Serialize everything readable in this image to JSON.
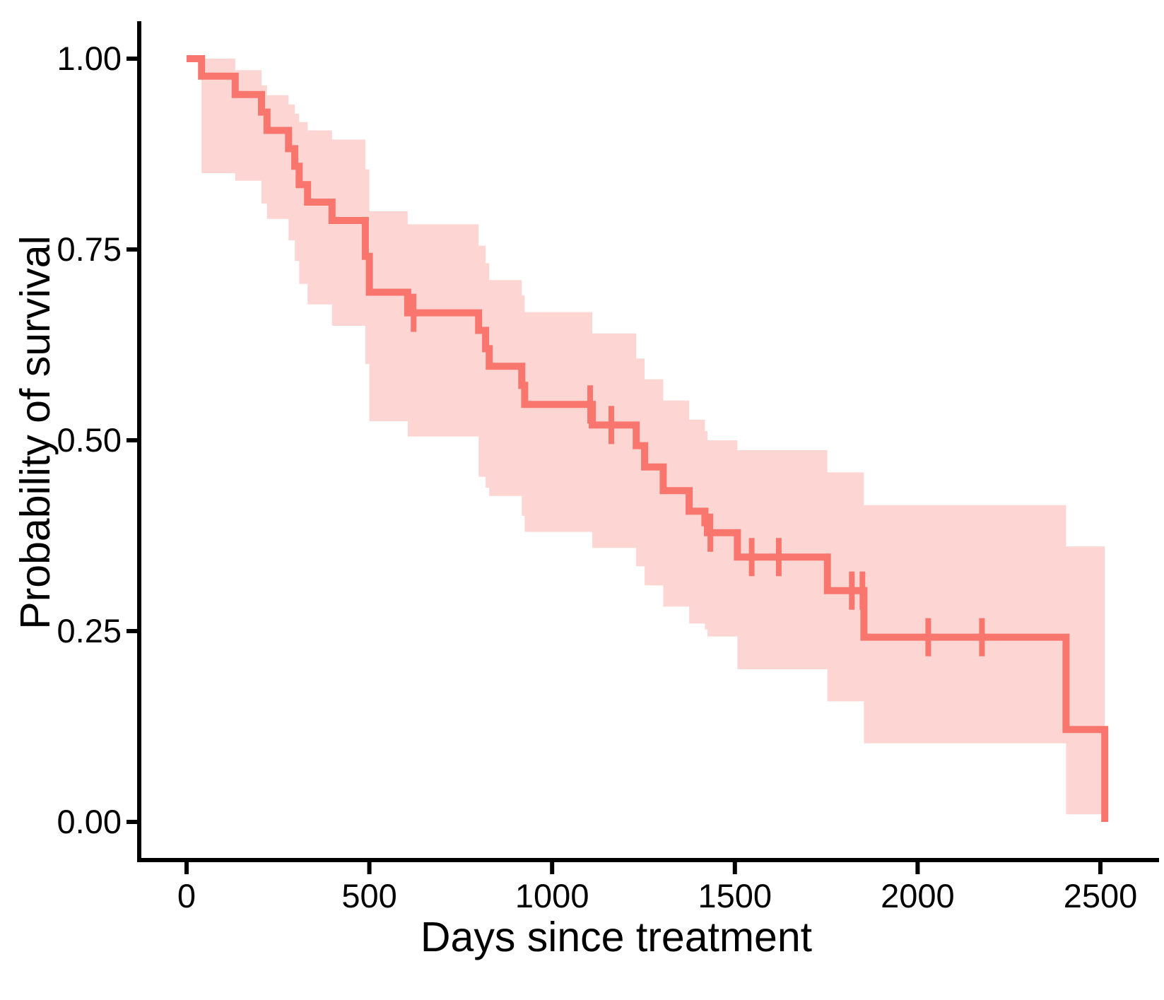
{
  "colors": {
    "curve": "#F8766D",
    "band_fill": "#F8766D",
    "band_opacity": 0.3,
    "axis": "#000000",
    "text": "#000000",
    "background": "#FFFFFF"
  },
  "chart_data": {
    "type": "line",
    "subtype": "kaplan-meier-step",
    "title": "",
    "xlabel": "Days since treatment",
    "ylabel": "Probability of survival",
    "xlim": [
      0,
      2550
    ],
    "ylim": [
      0,
      1.0
    ],
    "grid": false,
    "legend": "none",
    "x_ticks": [
      {
        "value": 0,
        "label": "0"
      },
      {
        "value": 500,
        "label": "500"
      },
      {
        "value": 1000,
        "label": "1000"
      },
      {
        "value": 1500,
        "label": "1500"
      },
      {
        "value": 2000,
        "label": "2000"
      },
      {
        "value": 2500,
        "label": "2500"
      }
    ],
    "y_ticks": [
      {
        "value": 0.0,
        "label": "0.00"
      },
      {
        "value": 0.25,
        "label": "0.25"
      },
      {
        "value": 0.5,
        "label": "0.50"
      },
      {
        "value": 0.75,
        "label": "0.75"
      },
      {
        "value": 1.0,
        "label": "1.00"
      }
    ],
    "series_name": "survival",
    "steps": [
      {
        "t": 0,
        "s": 1.0,
        "lo": null,
        "hi": null
      },
      {
        "t": 41,
        "s": 0.977,
        "lo": 0.85,
        "hi": 1.0
      },
      {
        "t": 133,
        "s": 0.953,
        "lo": 0.84,
        "hi": 0.985
      },
      {
        "t": 205,
        "s": 0.93,
        "lo": 0.81,
        "hi": 0.965
      },
      {
        "t": 220,
        "s": 0.906,
        "lo": 0.79,
        "hi": 0.952
      },
      {
        "t": 279,
        "s": 0.882,
        "lo": 0.762,
        "hi": 0.94
      },
      {
        "t": 296,
        "s": 0.859,
        "lo": 0.735,
        "hi": 0.928
      },
      {
        "t": 308,
        "s": 0.835,
        "lo": 0.705,
        "hi": 0.917
      },
      {
        "t": 331,
        "s": 0.812,
        "lo": 0.678,
        "hi": 0.906
      },
      {
        "t": 398,
        "s": 0.788,
        "lo": 0.65,
        "hi": 0.894
      },
      {
        "t": 489,
        "s": 0.741,
        "lo": 0.6,
        "hi": 0.855
      },
      {
        "t": 500,
        "s": 0.694,
        "lo": 0.525,
        "hi": 0.8
      },
      {
        "t": 605,
        "s": 0.667,
        "lo": 0.505,
        "hi": 0.783
      },
      {
        "t": 799,
        "s": 0.644,
        "lo": 0.452,
        "hi": 0.755
      },
      {
        "t": 818,
        "s": 0.62,
        "lo": 0.438,
        "hi": 0.732
      },
      {
        "t": 828,
        "s": 0.597,
        "lo": 0.427,
        "hi": 0.71
      },
      {
        "t": 917,
        "s": 0.572,
        "lo": 0.401,
        "hi": 0.69
      },
      {
        "t": 925,
        "s": 0.547,
        "lo": 0.38,
        "hi": 0.668
      },
      {
        "t": 1110,
        "s": 0.52,
        "lo": 0.359,
        "hi": 0.64
      },
      {
        "t": 1230,
        "s": 0.493,
        "lo": 0.335,
        "hi": 0.607
      },
      {
        "t": 1253,
        "s": 0.465,
        "lo": 0.31,
        "hi": 0.58
      },
      {
        "t": 1304,
        "s": 0.434,
        "lo": 0.282,
        "hi": 0.552
      },
      {
        "t": 1375,
        "s": 0.407,
        "lo": 0.26,
        "hi": 0.527
      },
      {
        "t": 1418,
        "s": 0.392,
        "lo": 0.252,
        "hi": 0.512
      },
      {
        "t": 1425,
        "s": 0.379,
        "lo": 0.243,
        "hi": 0.5
      },
      {
        "t": 1507,
        "s": 0.347,
        "lo": 0.2,
        "hi": 0.487
      },
      {
        "t": 1753,
        "s": 0.303,
        "lo": 0.158,
        "hi": 0.458
      },
      {
        "t": 1853,
        "s": 0.242,
        "lo": 0.103,
        "hi": 0.415
      },
      {
        "t": 2406,
        "s": 0.121,
        "lo": 0.01,
        "hi": 0.361
      },
      {
        "t": 2512,
        "s": 0.0,
        "lo": null,
        "hi": null
      }
    ],
    "censors": [
      {
        "t": 621,
        "s": 0.667
      },
      {
        "t": 1104,
        "s": 0.547
      },
      {
        "t": 1162,
        "s": 0.52
      },
      {
        "t": 1433,
        "s": 0.379
      },
      {
        "t": 1546,
        "s": 0.347
      },
      {
        "t": 1620,
        "s": 0.347
      },
      {
        "t": 1820,
        "s": 0.303
      },
      {
        "t": 1849,
        "s": 0.303
      },
      {
        "t": 2029,
        "s": 0.242
      },
      {
        "t": 2176,
        "s": 0.242
      }
    ]
  }
}
